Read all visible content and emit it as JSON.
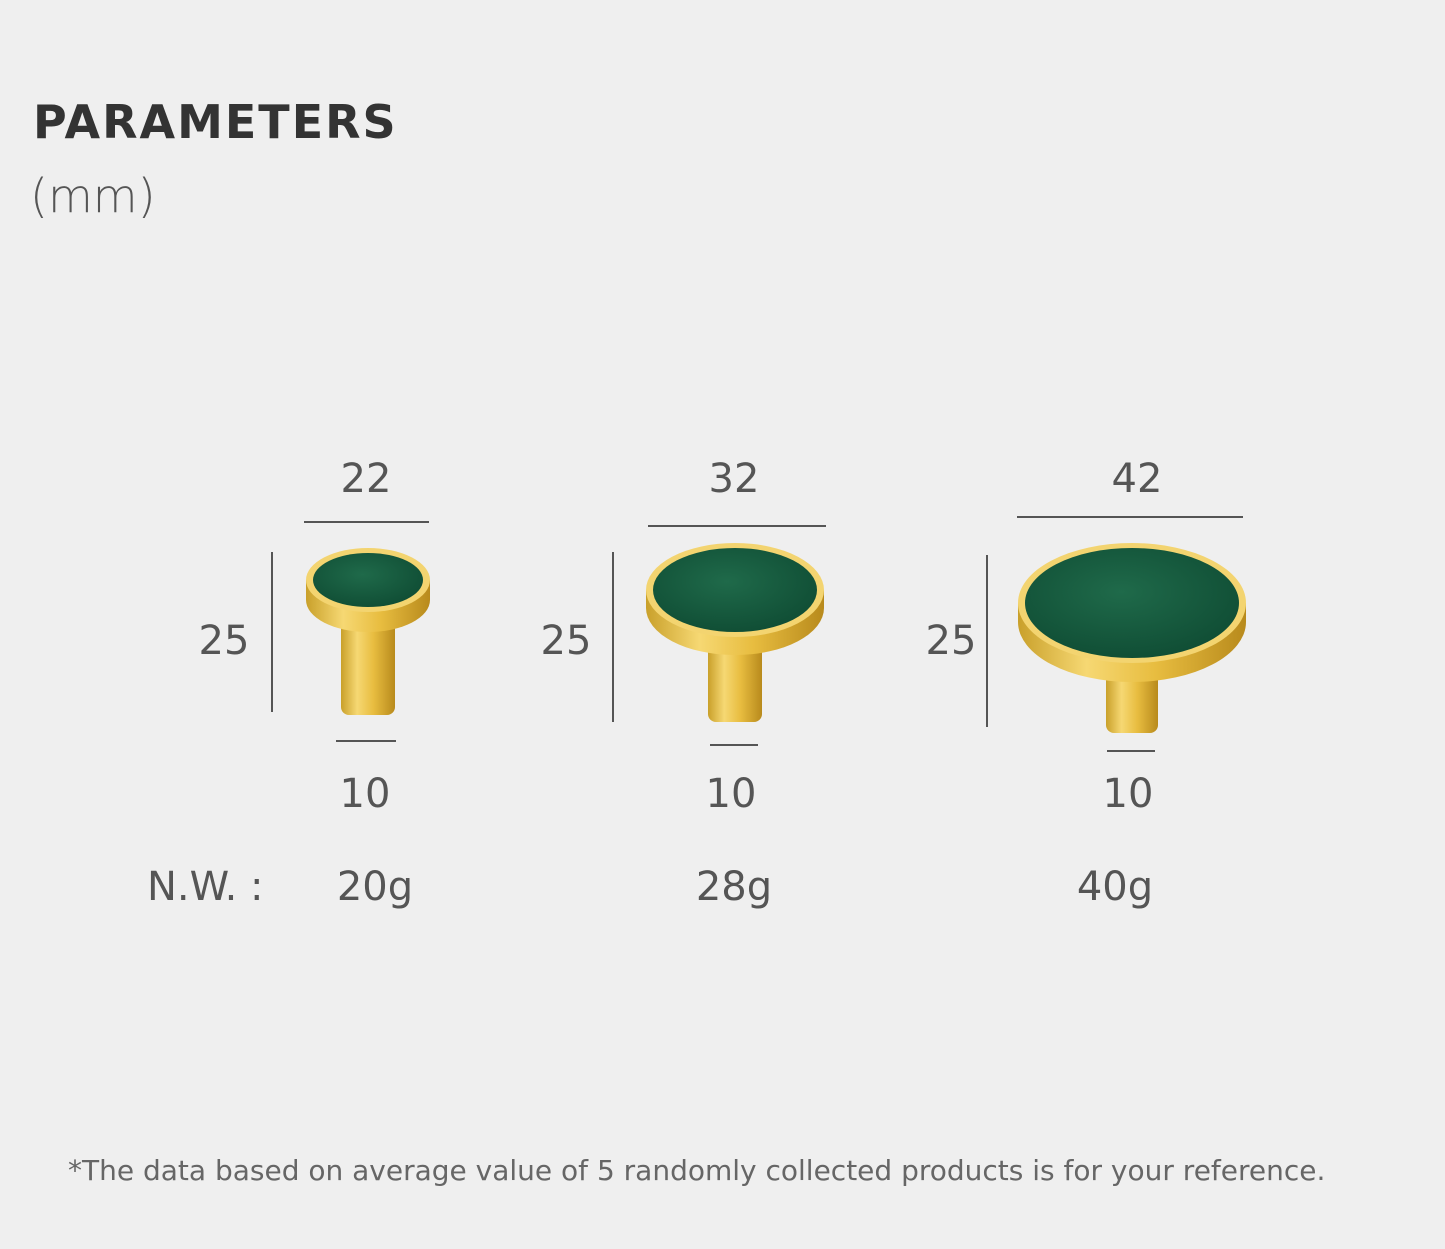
{
  "header": {
    "title": "PARAMETERS",
    "unit": "(mm)"
  },
  "weight_label": "N.W. :",
  "products": [
    {
      "width": 22,
      "height": 25,
      "stem": 10,
      "weight": "20g"
    },
    {
      "width": 32,
      "height": 25,
      "stem": 10,
      "weight": "28g"
    },
    {
      "width": 42,
      "height": 25,
      "stem": 10,
      "weight": "40g"
    }
  ],
  "footnote": "*The data based on average value of 5 randomly collected products is for your reference."
}
